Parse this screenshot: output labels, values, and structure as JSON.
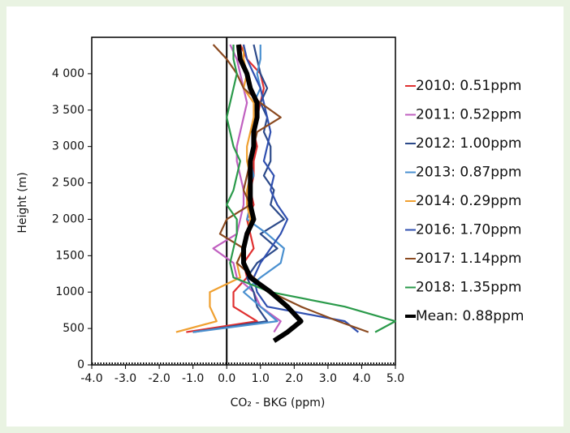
{
  "chart_data": {
    "type": "line",
    "x_label": "CO₂ - BKG (ppm)",
    "y_label": "Height (m)",
    "y": [
      330,
      450,
      600,
      800,
      1000,
      1200,
      1400,
      1600,
      1800,
      2000,
      2200,
      2400,
      2600,
      2800,
      3000,
      3200,
      3400,
      3600,
      3800,
      4000,
      4200,
      4400
    ],
    "series": [
      {
        "name": "2010: 0.51ppm",
        "color": "#e03030",
        "values": [
          null,
          -1.2,
          0.9,
          0.2,
          0.2,
          0.6,
          0.5,
          0.8,
          0.7,
          0.6,
          0.8,
          0.7,
          0.8,
          0.8,
          0.9,
          0.8,
          0.9,
          1.0,
          1.1,
          1.0,
          0.6,
          0.4
        ]
      },
      {
        "name": "2011: 0.52ppm",
        "color": "#c060c0",
        "values": [
          null,
          1.4,
          1.6,
          1.0,
          0.8,
          0.3,
          0.2,
          -0.4,
          0.3,
          0.4,
          0.5,
          0.5,
          0.4,
          0.3,
          0.3,
          0.4,
          0.5,
          0.6,
          0.5,
          0.4,
          0.3,
          0.1
        ]
      },
      {
        "name": "2012: 1.00ppm",
        "color": "#2c4a8a",
        "values": [
          null,
          -1.0,
          1.2,
          0.9,
          0.8,
          0.6,
          0.9,
          1.5,
          1.0,
          1.7,
          1.3,
          1.4,
          1.1,
          1.3,
          1.3,
          1.1,
          1.2,
          1.0,
          1.2,
          1.0,
          0.9,
          0.8
        ]
      },
      {
        "name": "2013: 0.87ppm",
        "color": "#4a90d0",
        "values": [
          null,
          -1.0,
          1.5,
          1.0,
          0.5,
          1.0,
          1.6,
          1.7,
          1.2,
          0.6,
          0.7,
          0.6,
          0.8,
          0.7,
          0.8,
          0.8,
          0.9,
          0.8,
          1.0,
          0.9,
          1.0,
          1.0
        ]
      },
      {
        "name": "2014: 0.29ppm",
        "color": "#f0a030",
        "values": [
          null,
          -1.5,
          -0.3,
          -0.5,
          -0.5,
          0.4,
          0.3,
          0.5,
          0.6,
          0.7,
          0.6,
          0.6,
          0.7,
          0.6,
          0.6,
          0.7,
          0.8,
          0.8,
          0.5,
          0.6,
          0.5,
          0.5
        ]
      },
      {
        "name": "2016: 1.70ppm",
        "color": "#3050b0",
        "values": [
          null,
          3.9,
          3.5,
          1.2,
          0.9,
          0.8,
          1.0,
          1.3,
          1.6,
          1.8,
          1.5,
          1.3,
          1.4,
          1.1,
          1.2,
          1.3,
          1.2,
          1.1,
          1.0,
          0.8,
          0.6,
          0.5
        ]
      },
      {
        "name": "2017: 1.14ppm",
        "color": "#8b4a20",
        "values": [
          null,
          4.2,
          3.3,
          2.2,
          1.3,
          0.8,
          0.3,
          0.5,
          -0.2,
          0.0,
          0.7,
          0.5,
          0.6,
          0.7,
          0.8,
          0.9,
          1.6,
          1.0,
          0.5,
          0.3,
          0.0,
          -0.4
        ]
      },
      {
        "name": "2018: 1.35ppm",
        "color": "#2a9a4a",
        "values": [
          null,
          4.4,
          5.0,
          3.5,
          1.3,
          0.2,
          0.1,
          0.2,
          0.3,
          0.3,
          0.0,
          0.2,
          0.3,
          0.4,
          0.2,
          0.1,
          0.0,
          0.1,
          0.2,
          0.3,
          0.2,
          0.2
        ]
      },
      {
        "name": "Mean: 0.88ppm",
        "color": "#000000",
        "values": [
          1.4,
          1.8,
          2.2,
          1.8,
          1.3,
          0.7,
          0.5,
          0.5,
          0.6,
          0.8,
          0.7,
          0.7,
          0.7,
          0.7,
          0.8,
          0.8,
          0.9,
          0.9,
          0.7,
          0.6,
          0.4,
          0.35
        ]
      }
    ],
    "xlim": [
      -4,
      5
    ],
    "xticks": [
      {
        "value": -4,
        "label": "-4.0"
      },
      {
        "value": -3,
        "label": "-3.0"
      },
      {
        "value": -2,
        "label": "-2.0"
      },
      {
        "value": -1,
        "label": "-1.0"
      },
      {
        "value": 0,
        "label": "0.0"
      },
      {
        "value": 1,
        "label": "1.0"
      },
      {
        "value": 2,
        "label": "2.0"
      },
      {
        "value": 3,
        "label": "3.0"
      },
      {
        "value": 4,
        "label": "4.0"
      },
      {
        "value": 5,
        "label": "5.0"
      }
    ],
    "ylim": [
      0,
      4500
    ],
    "yticks": [
      0,
      500,
      1000,
      1500,
      {
        "value": 2000,
        "label": "2 000"
      },
      {
        "value": 2500,
        "label": "2 500"
      },
      {
        "value": 3000,
        "label": "3 000"
      },
      {
        "value": 3500,
        "label": "3 500"
      },
      {
        "value": 4000,
        "label": "4 000"
      }
    ],
    "legend": "right"
  }
}
